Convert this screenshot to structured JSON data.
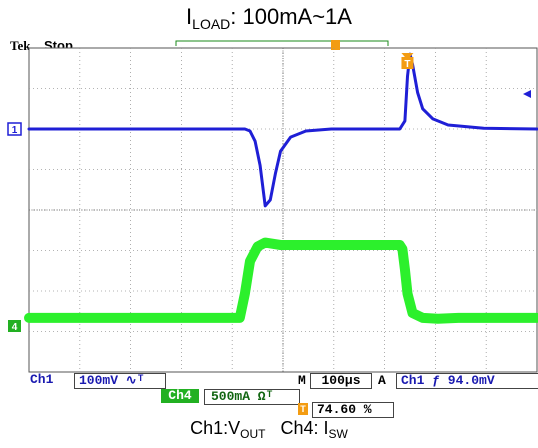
{
  "header": {
    "title_main": "I",
    "title_sub": "LOAD",
    "title_rest": ": 100mA~1A",
    "brand": "Tek",
    "state": "Stop"
  },
  "readouts": {
    "ch1_label": "Ch1",
    "ch1_scale": "100mV ∿ᵀ",
    "ch4_label": "Ch4",
    "ch4_scale": "500mA Ωᵀ",
    "timebase_prefix": "M",
    "timebase": "100µs",
    "trigger_mode": "A",
    "trigger_source": "Ch1  ƒ  94.0mV",
    "trigger_position_icon": "T",
    "trigger_position": "74.60 %"
  },
  "caption": {
    "ch1": "Ch1:V",
    "ch1_sub": "OUT",
    "ch4": "Ch4: I",
    "ch4_sub": "SW"
  },
  "markers": {
    "ch1": "1",
    "ch4": "4",
    "trigger": "T"
  },
  "colors": {
    "ch1": "#1f1fd6",
    "ch4": "#2cf02c",
    "grid": "#9a9a9a",
    "trigger": "#f39c12",
    "marker_ch4": "#22b022"
  },
  "chart_data": {
    "type": "line",
    "x_unit": "µs",
    "x_range": [
      -745,
      255
    ],
    "y_range_divisions": [
      -4,
      4
    ],
    "grid": true,
    "grid_divisions": {
      "x": 10,
      "y": 8
    },
    "series": [
      {
        "name": "Ch1",
        "units": "mV",
        "scale_per_div": 100,
        "x": [
          -745,
          -320,
          -310,
          -300,
          -290,
          -280,
          -270,
          -260,
          -250,
          -230,
          -200,
          -150,
          -80,
          -30,
          -15,
          -5,
          0,
          5,
          10,
          20,
          30,
          50,
          80,
          150,
          255
        ],
        "y": [
          0,
          0,
          -5,
          -30,
          -90,
          -190,
          -175,
          -110,
          -55,
          -20,
          -5,
          0,
          0,
          0,
          0,
          20,
          130,
          185,
          160,
          90,
          50,
          25,
          10,
          2,
          0
        ]
      },
      {
        "name": "Ch4",
        "units": "mA",
        "scale_per_div": 500,
        "x": [
          -745,
          -330,
          -320,
          -310,
          -295,
          -280,
          -250,
          -150,
          -50,
          -15,
          -10,
          -5,
          0,
          10,
          30,
          60,
          100,
          255
        ],
        "y": [
          100,
          100,
          400,
          800,
          980,
          1030,
          1000,
          1000,
          1000,
          1000,
          950,
          700,
          400,
          160,
          100,
          90,
          100,
          100
        ]
      }
    ]
  }
}
